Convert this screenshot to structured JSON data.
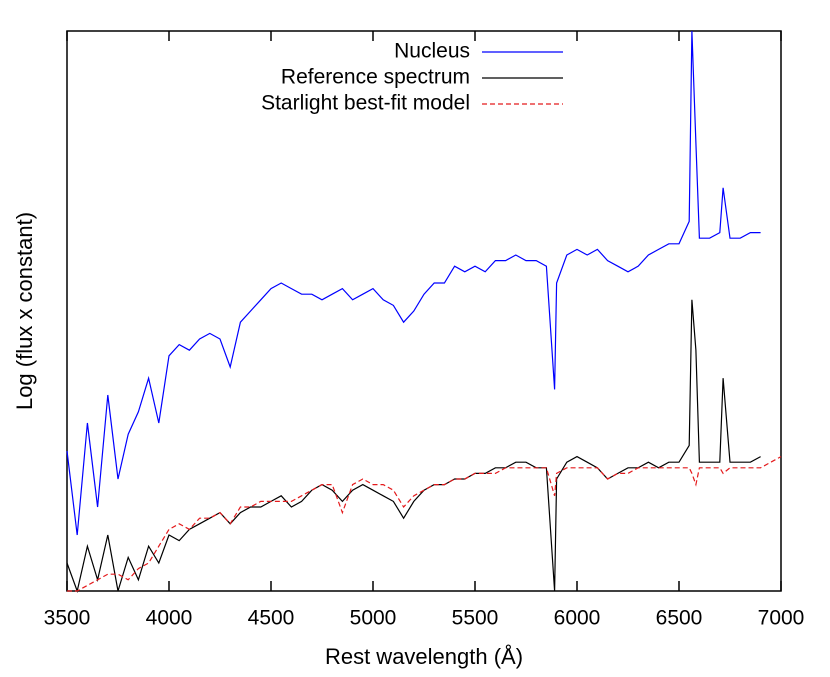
{
  "chart_data": {
    "type": "line",
    "xlabel": "Rest wavelength (Å)",
    "ylabel": "Log (flux x constant)",
    "xlim": [
      3500,
      7000
    ],
    "xticks": [
      3500,
      4000,
      4500,
      5000,
      5500,
      6000,
      6500,
      7000
    ],
    "ylim": [
      0,
      100
    ],
    "legend": "top-right",
    "x": [
      3500,
      3550,
      3600,
      3650,
      3700,
      3750,
      3800,
      3850,
      3900,
      3950,
      4000,
      4050,
      4100,
      4150,
      4200,
      4250,
      4300,
      4350,
      4400,
      4450,
      4500,
      4550,
      4600,
      4650,
      4700,
      4750,
      4800,
      4850,
      4900,
      4950,
      5000,
      5050,
      5100,
      5150,
      5200,
      5250,
      5300,
      5350,
      5400,
      5450,
      5500,
      5550,
      5600,
      5650,
      5700,
      5750,
      5800,
      5850,
      5890,
      5900,
      5950,
      6000,
      6050,
      6100,
      6150,
      6200,
      6250,
      6300,
      6350,
      6400,
      6450,
      6500,
      6550,
      6563,
      6583,
      6600,
      6650,
      6700,
      6716,
      6750,
      6800,
      6850,
      6900,
      6950,
      7000
    ],
    "series": [
      {
        "name": "Nucleus",
        "color": "#0000ff",
        "dashed": false,
        "values": [
          25,
          10,
          30,
          15,
          35,
          20,
          28,
          32,
          38,
          30,
          42,
          44,
          43,
          45,
          46,
          45,
          40,
          48,
          50,
          52,
          54,
          55,
          54,
          53,
          53,
          52,
          53,
          54,
          52,
          53,
          54,
          52,
          51,
          48,
          50,
          53,
          55,
          55,
          58,
          57,
          58,
          57,
          59,
          59,
          60,
          59,
          59,
          58,
          36,
          55,
          60,
          61,
          60,
          61,
          59,
          58,
          57,
          58,
          60,
          61,
          62,
          62,
          66,
          100,
          80,
          63,
          63,
          64,
          72,
          63,
          63,
          64,
          64,
          null,
          null
        ]
      },
      {
        "name": "Reference spectrum",
        "color": "#000000",
        "dashed": false,
        "values": [
          5,
          0,
          8,
          2,
          10,
          0,
          6,
          2,
          8,
          5,
          10,
          9,
          11,
          12,
          13,
          14,
          12,
          14,
          15,
          15,
          16,
          17,
          15,
          16,
          18,
          19,
          18,
          16,
          18,
          19,
          18,
          17,
          16,
          13,
          16,
          18,
          19,
          19,
          20,
          20,
          21,
          21,
          22,
          22,
          23,
          23,
          22,
          22,
          0,
          20,
          23,
          24,
          23,
          22,
          20,
          21,
          22,
          22,
          23,
          22,
          23,
          23,
          26,
          52,
          43,
          23,
          23,
          23,
          38,
          23,
          23,
          23,
          24,
          null,
          null
        ]
      },
      {
        "name": "Starlight best-fit model",
        "color": "#e41a1c",
        "dashed": true,
        "values": [
          0,
          0,
          1,
          2,
          3,
          3,
          2,
          4,
          5,
          8,
          11,
          12,
          11,
          13,
          13,
          14,
          12,
          15,
          15,
          16,
          16,
          16,
          16,
          17,
          18,
          19,
          19,
          14,
          19,
          20,
          19,
          19,
          18,
          15,
          17,
          18,
          19,
          19,
          20,
          20,
          21,
          21,
          21,
          22,
          22,
          22,
          22,
          22,
          17,
          21,
          22,
          22,
          22,
          22,
          20,
          21,
          21,
          22,
          22,
          22,
          22,
          22,
          22,
          21,
          19,
          22,
          22,
          22,
          21,
          22,
          22,
          22,
          22,
          23,
          24
        ]
      }
    ]
  }
}
